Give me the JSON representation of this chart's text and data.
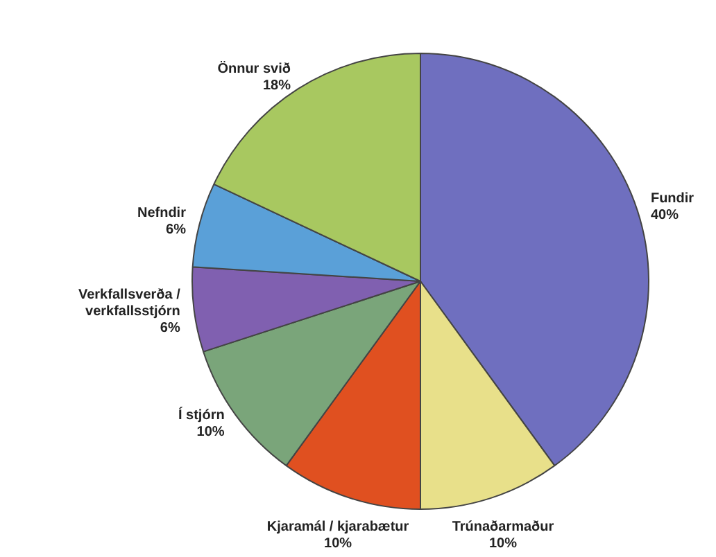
{
  "chart_data": {
    "type": "pie",
    "categories": [
      "Fundir",
      "Trúnaðarmaður",
      "Kjaramál / kjarabætur",
      "Í stjórn",
      "Verkfallsverða / verkfallsstjórn",
      "Nefndir",
      "Önnur svið"
    ],
    "values": [
      40,
      10,
      10,
      10,
      6,
      6,
      18
    ],
    "value_labels": [
      "40%",
      "10%",
      "10%",
      "10%",
      "6%",
      "6%",
      "18%"
    ],
    "colors": [
      "#6f6fbf",
      "#e8e08a",
      "#e05020",
      "#7aa57a",
      "#8060b0",
      "#5aa0d8",
      "#a8c860"
    ],
    "legend": false
  }
}
